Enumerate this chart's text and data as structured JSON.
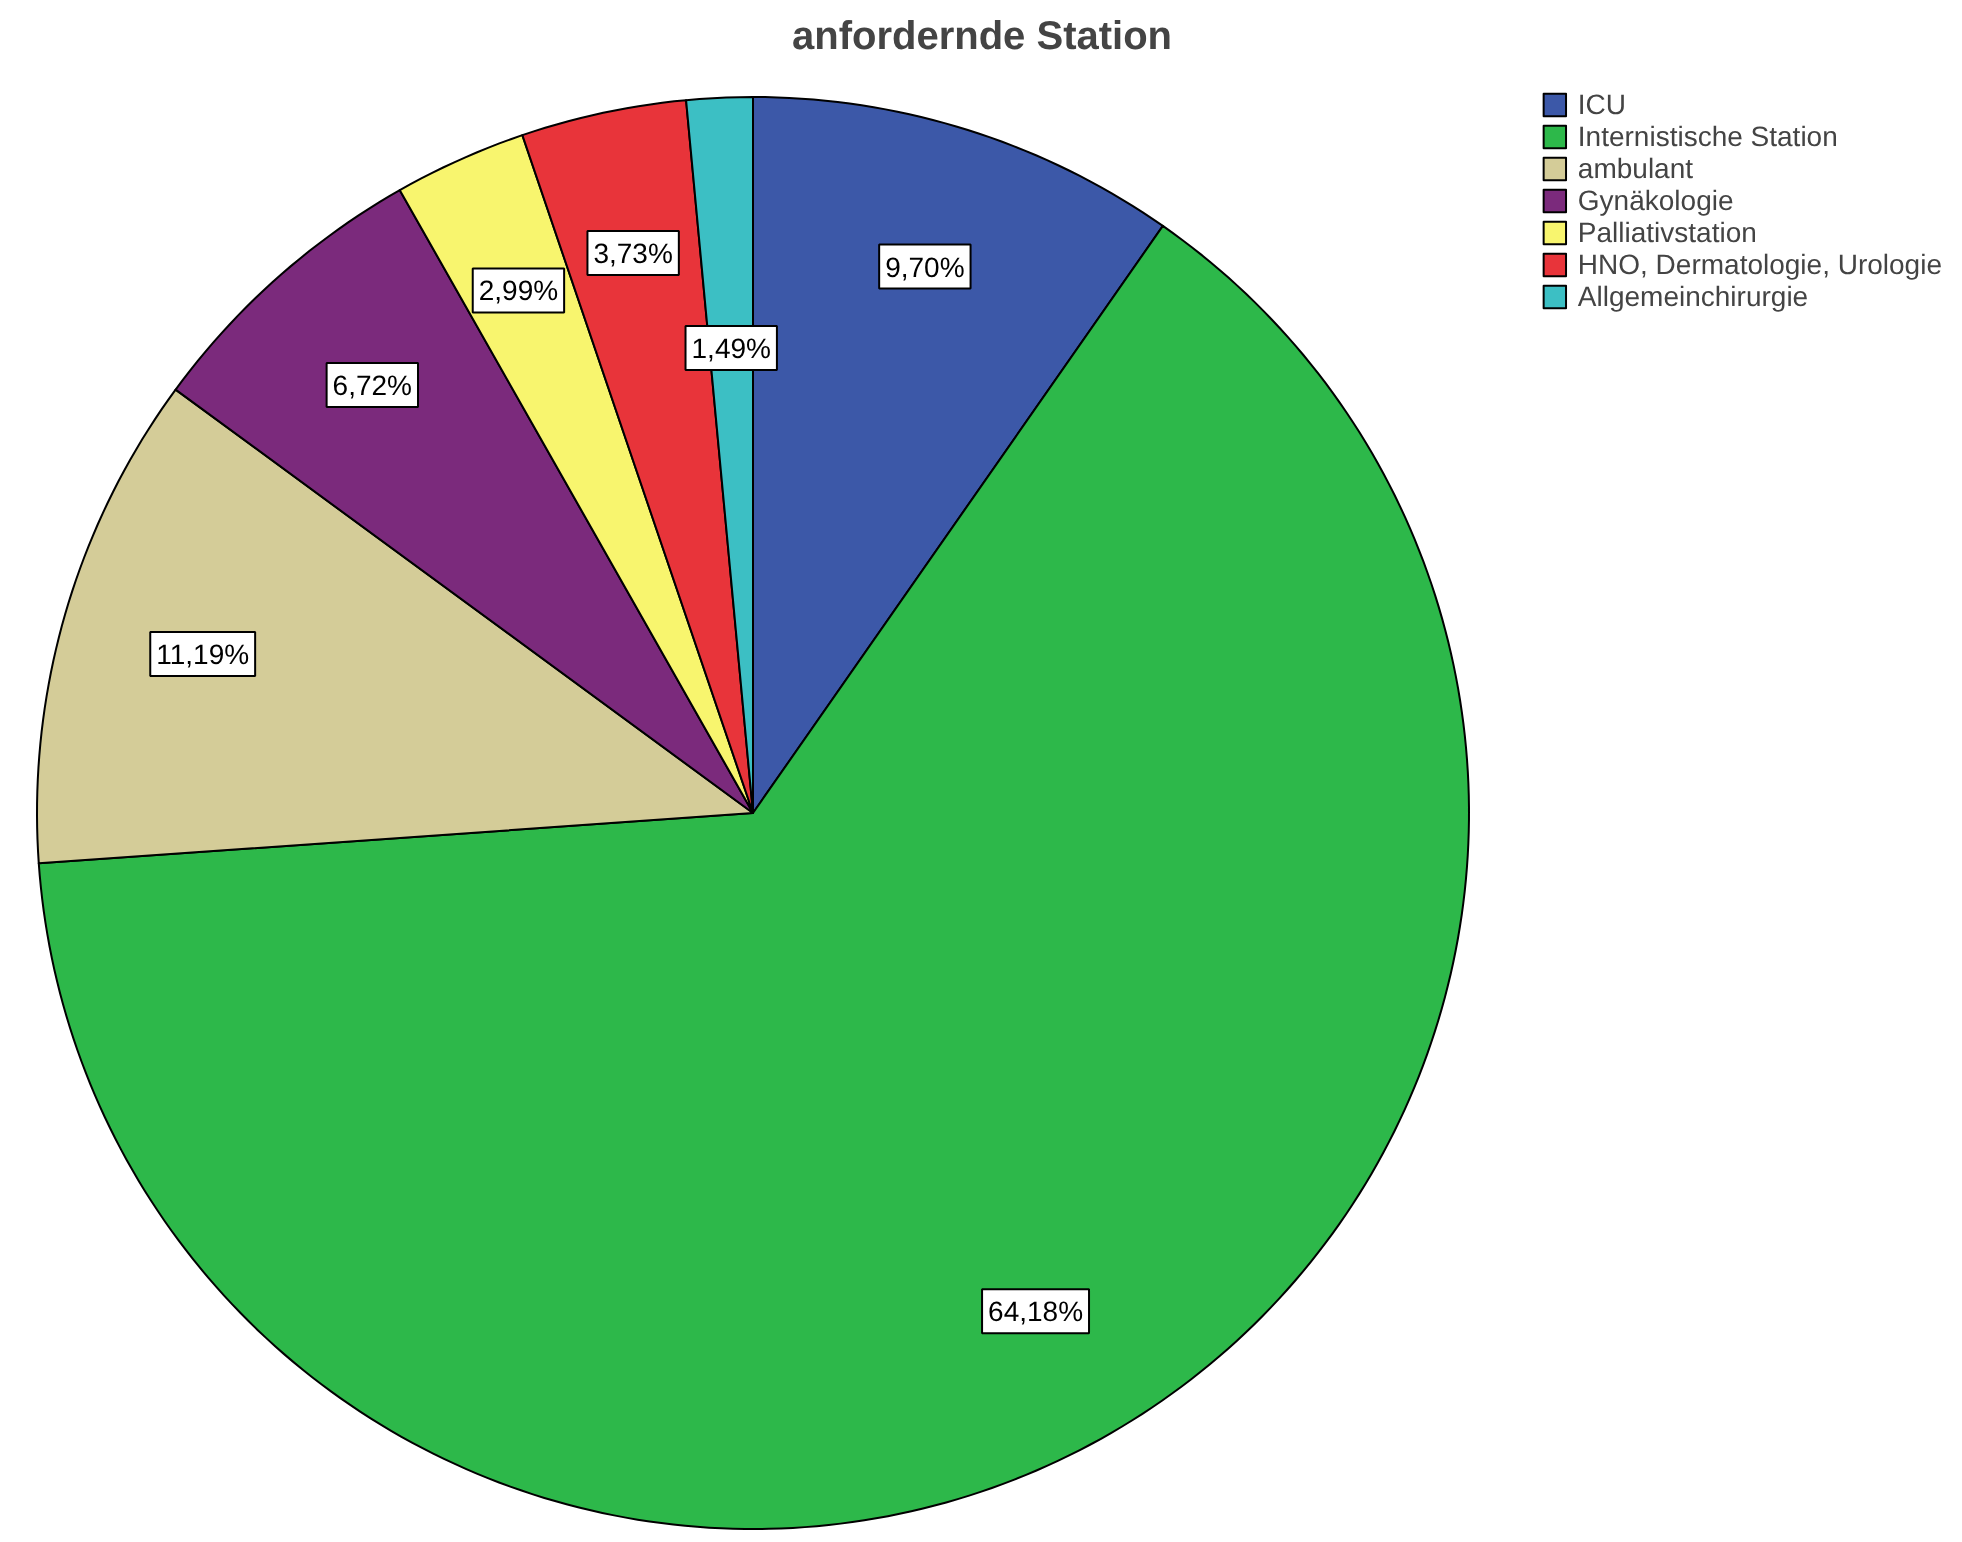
{
  "chart_data": {
    "type": "pie",
    "title": "anfordernde Station",
    "categories": [
      "ICU",
      "Internistische Station",
      "ambulant",
      "Gynäkologie",
      "Palliativstation",
      "HNO, Dermatologie, Urologie",
      "Allgemeinchirurgie"
    ],
    "values": [
      9.7,
      64.18,
      11.19,
      6.72,
      2.99,
      3.73,
      1.49
    ],
    "colors": [
      "#3c58a8",
      "#2db84a",
      "#d4cc98",
      "#7b2a7c",
      "#f8f56e",
      "#e8343a",
      "#3cbfc4"
    ],
    "value_labels": [
      "9,70%",
      "64,18%",
      "11,19%",
      "6,72%",
      "2,99%",
      "3,73%",
      "1,49%"
    ],
    "legend": "top right"
  }
}
